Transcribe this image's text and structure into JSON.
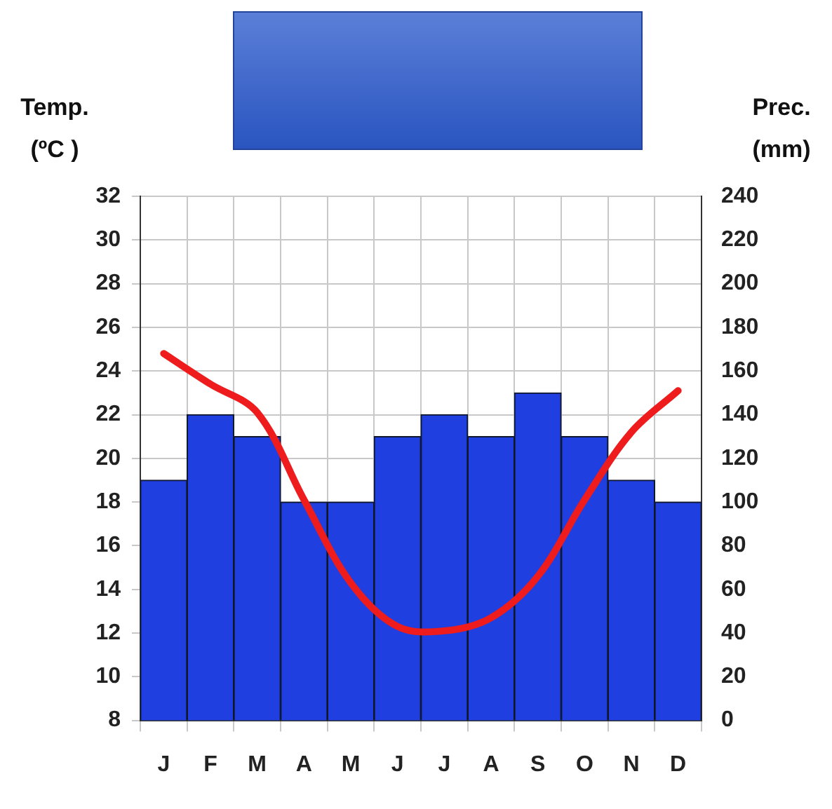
{
  "chart_data": {
    "type": "bar",
    "ylabel": "Temp. (ºC )",
    "y2label": "Prec. (mm)",
    "categories": [
      "J",
      "F",
      "M",
      "A",
      "M",
      "J",
      "J",
      "A",
      "S",
      "O",
      "N",
      "D"
    ],
    "series": [
      {
        "axis": "y2",
        "color": "#1f3fe0",
        "values": [
          110,
          140,
          130,
          100,
          100,
          130,
          140,
          130,
          150,
          130,
          110,
          100
        ]
      },
      {
        "type": "line",
        "axis": "y",
        "color": "#ee1c1c",
        "values": [
          24.8,
          23.4,
          22.1,
          18.1,
          14.3,
          12.3,
          12.1,
          12.7,
          14.6,
          18.1,
          21.2,
          23.1
        ]
      }
    ],
    "ylim": [
      8,
      32
    ],
    "yticks": [
      8,
      10,
      12,
      14,
      16,
      18,
      20,
      22,
      24,
      26,
      28,
      30,
      32
    ],
    "y2lim": [
      0,
      240
    ],
    "y2ticks": [
      0,
      20,
      40,
      60,
      80,
      100,
      120,
      140,
      160,
      180,
      200,
      220,
      240
    ],
    "grid": true,
    "legend": false,
    "marker": "none",
    "line_style": "solid"
  }
}
